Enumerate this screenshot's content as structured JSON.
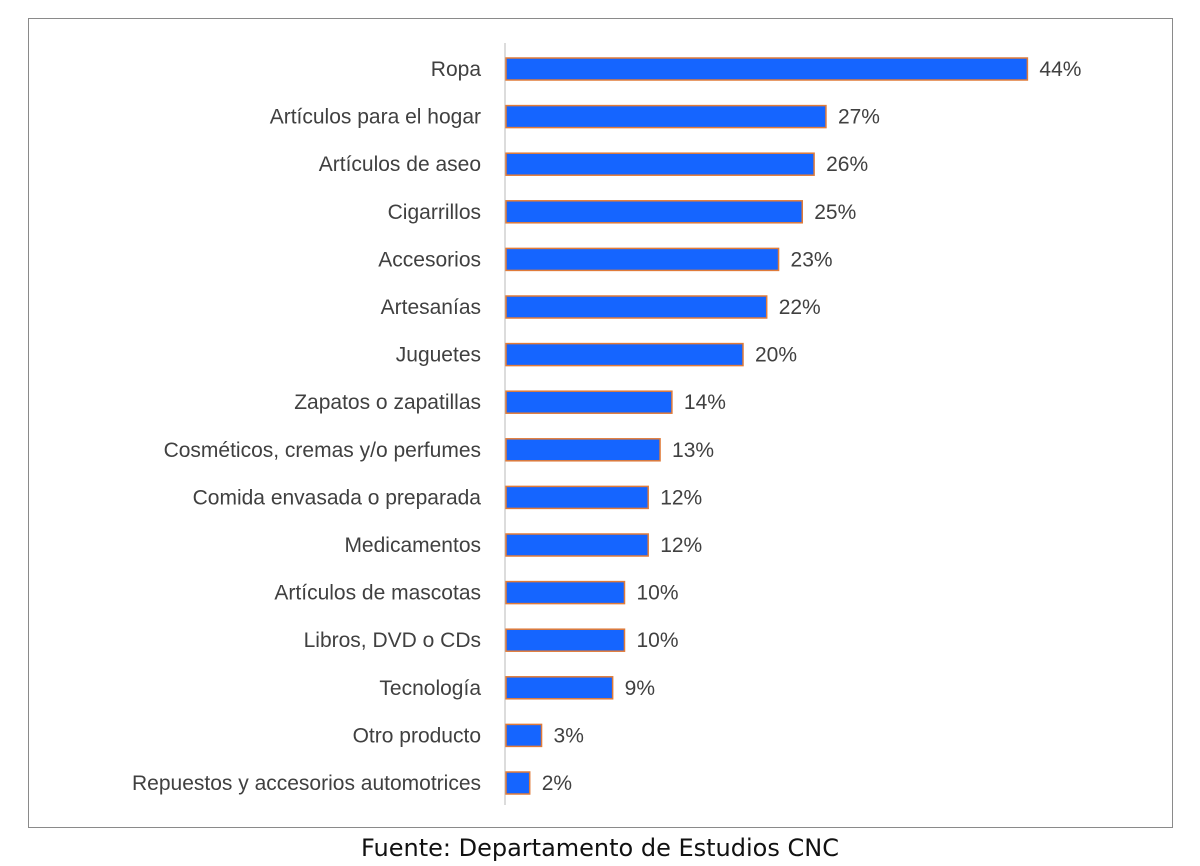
{
  "chart_data": {
    "type": "bar",
    "orientation": "horizontal",
    "categories": [
      "Ropa",
      "Artículos para el hogar",
      "Artículos de aseo",
      "Cigarrillos",
      "Accesorios",
      "Artesanías",
      "Juguetes",
      "Zapatos o zapatillas",
      "Cosméticos, cremas y/o perfumes",
      "Comida envasada o preparada",
      "Medicamentos",
      "Artículos de mascotas",
      "Libros, DVD o CDs",
      "Tecnología",
      "Otro producto",
      "Repuestos y accesorios automotrices"
    ],
    "values": [
      44,
      27,
      26,
      25,
      23,
      22,
      20,
      14,
      13,
      12,
      12,
      10,
      10,
      9,
      3,
      2
    ],
    "value_labels": [
      "44%",
      "27%",
      "26%",
      "25%",
      "23%",
      "22%",
      "20%",
      "14%",
      "13%",
      "12%",
      "12%",
      "10%",
      "10%",
      "9%",
      "3%",
      "2%"
    ],
    "unit": "%",
    "bar_color": "#1565FF",
    "bar_border_color": "#E07B39",
    "grid": false,
    "legend": "none"
  },
  "source": "Fuente: Departamento de Estudios CNC"
}
